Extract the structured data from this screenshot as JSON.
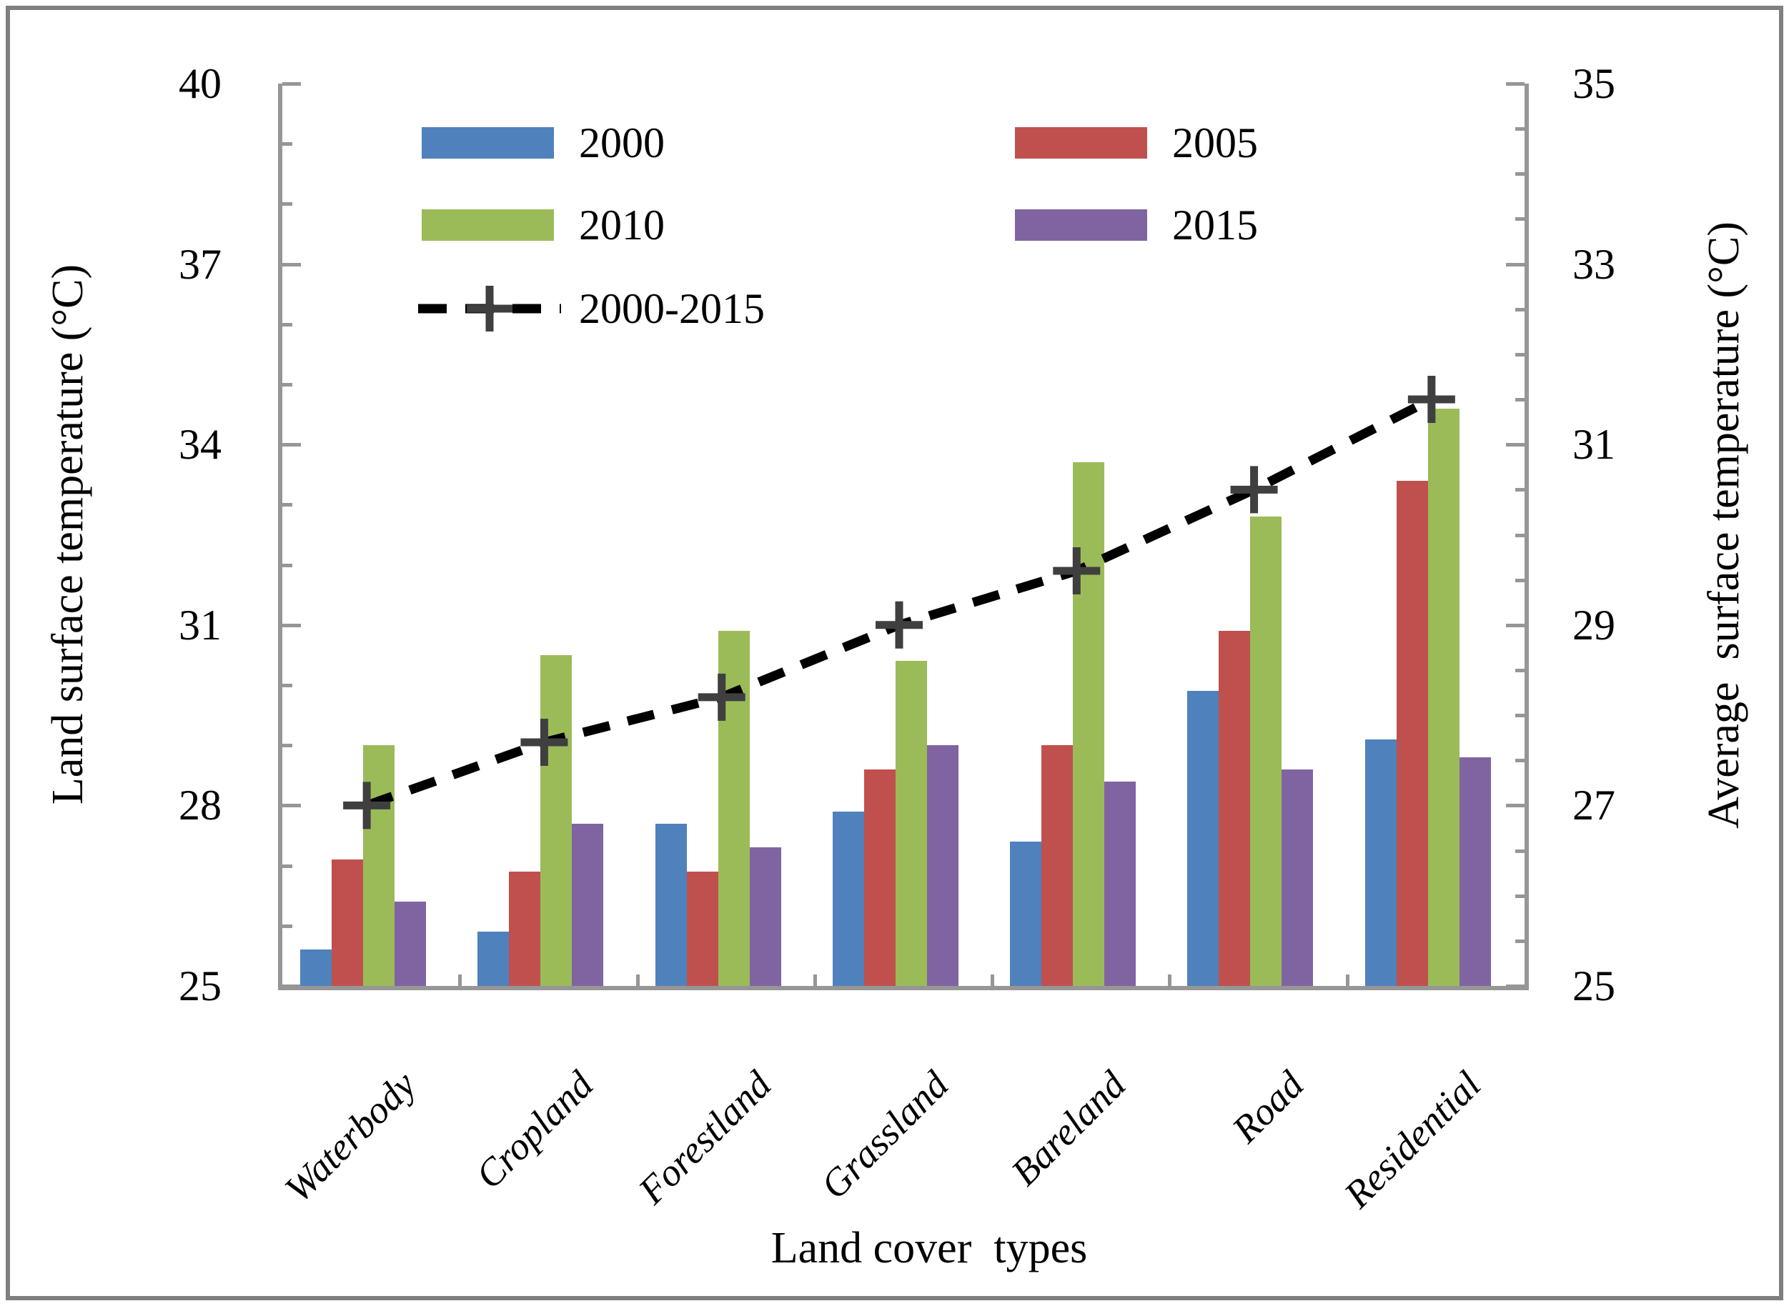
{
  "chart_data": {
    "type": "bar",
    "title": "",
    "categories": [
      "Waterbody",
      "Cropland",
      "Forestland",
      "Grassland",
      "Bareland",
      "Road",
      "Residential"
    ],
    "series": [
      {
        "name": "2000",
        "color": "#4F81BD",
        "axis": "left",
        "values": [
          25.6,
          25.9,
          27.7,
          27.9,
          27.4,
          29.9,
          29.1
        ]
      },
      {
        "name": "2005",
        "color": "#C0504D",
        "axis": "left",
        "values": [
          27.1,
          26.9,
          26.9,
          28.6,
          29.0,
          30.9,
          33.4
        ]
      },
      {
        "name": "2010",
        "color": "#9BBB59",
        "axis": "left",
        "values": [
          29.0,
          30.5,
          30.9,
          30.4,
          33.7,
          32.8,
          34.6
        ]
      },
      {
        "name": "2015",
        "color": "#8064A2",
        "axis": "left",
        "values": [
          26.4,
          27.7,
          27.3,
          29.0,
          28.4,
          28.6,
          28.8
        ]
      }
    ],
    "line_series": {
      "name": "2000-2015",
      "type": "line",
      "color": "#000000",
      "marker": "plus",
      "marker_color": "#3F3F3F",
      "line_style": "dashed",
      "axis": "right",
      "values": [
        27.0,
        27.7,
        28.2,
        29.0,
        29.6,
        30.5,
        31.5
      ]
    },
    "left_axis": {
      "label": "Land surface temperature (°C)",
      "min": 25,
      "max": 40,
      "major_step": 3,
      "minor_step": 1,
      "tick_labels": [
        "25",
        "28",
        "31",
        "34",
        "37",
        "40"
      ]
    },
    "right_axis": {
      "label": "Average  surface temperature (°C)",
      "min": 25,
      "max": 35,
      "major_step": 2,
      "minor_step": 0.5,
      "tick_labels": [
        "25",
        "27",
        "29",
        "31",
        "33",
        "35"
      ]
    },
    "x_axis": {
      "label": "Land cover  types"
    },
    "legend_position": "inside-top-left",
    "grid": false,
    "axis_line_color": "#969696",
    "frame_color": "#7F7F7F"
  }
}
